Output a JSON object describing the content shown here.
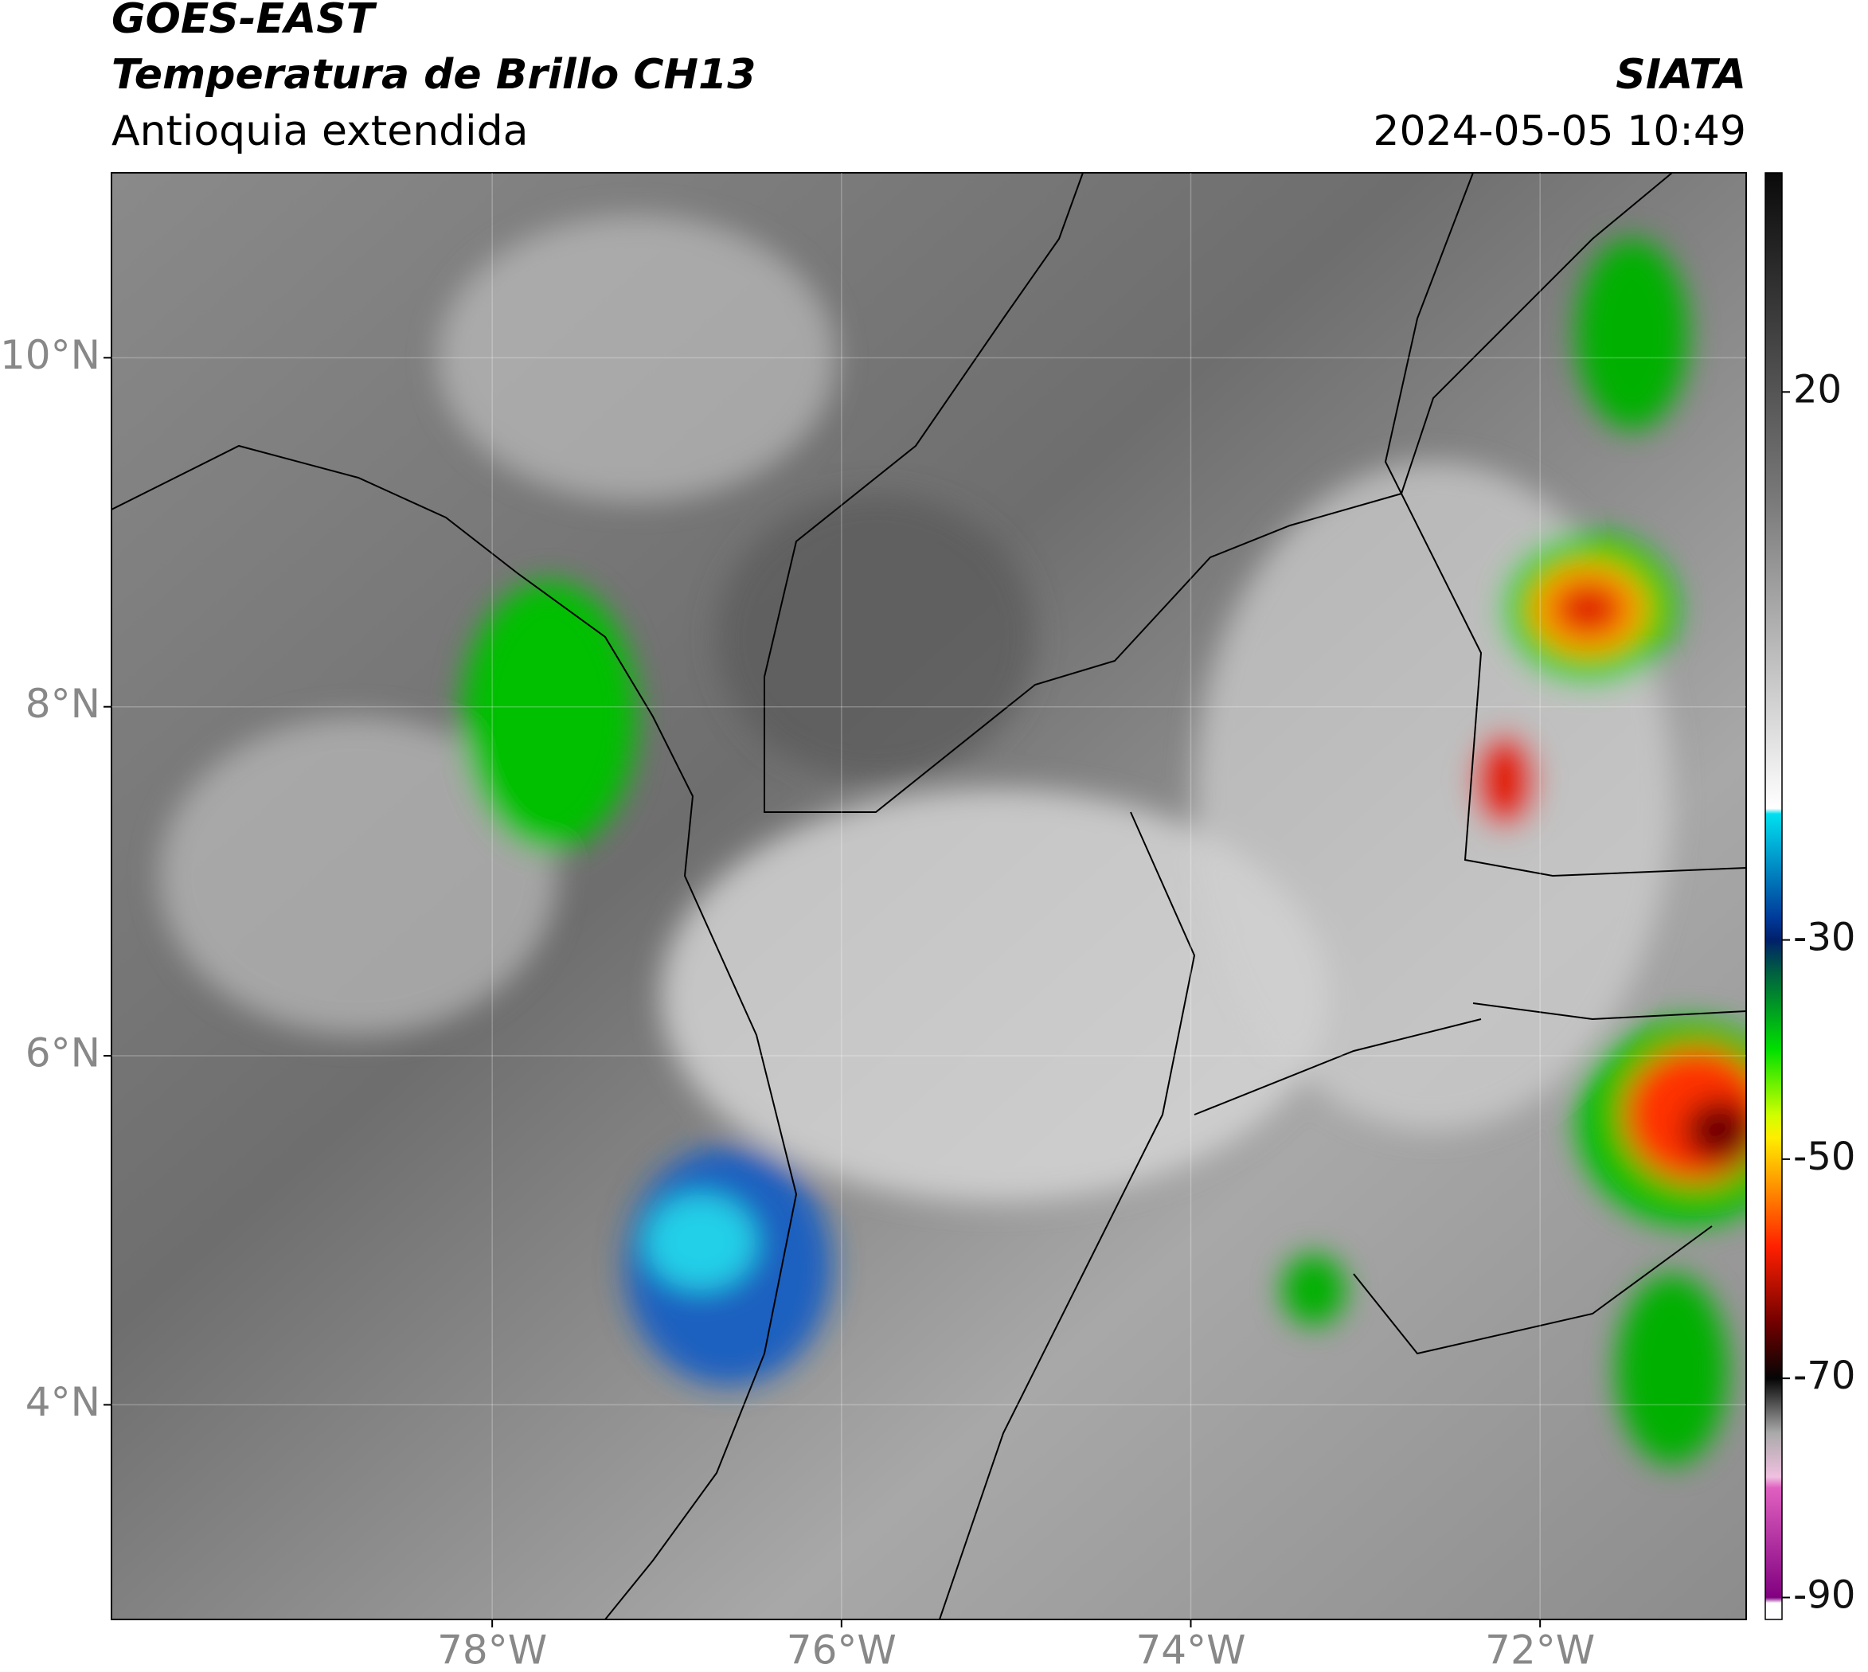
{
  "header": {
    "title": "GOES-EAST",
    "subtitle": "Temperatura de Brillo CH13",
    "region": "Antioquia extendida",
    "source": "SIATA",
    "timestamp": "2024-05-05 10:49"
  },
  "map": {
    "xlim": [
      -80.18,
      -70.82
    ],
    "ylim": [
      2.77,
      11.06
    ],
    "xticks": [
      {
        "value": -78,
        "label": "78°W"
      },
      {
        "value": -76,
        "label": "76°W"
      },
      {
        "value": -74,
        "label": "74°W"
      },
      {
        "value": -72,
        "label": "72°W"
      }
    ],
    "yticks": [
      {
        "value": 10,
        "label": "10°N"
      },
      {
        "value": 8,
        "label": "8°N"
      },
      {
        "value": 6,
        "label": "6°N"
      },
      {
        "value": 4,
        "label": "4°N"
      }
    ],
    "grid": true
  },
  "colorbar": {
    "lim": [
      -92,
      40
    ],
    "ticks": [
      20,
      -30,
      -50,
      -70,
      -90
    ],
    "stops": [
      {
        "value": 40,
        "color": "#0a0a0a"
      },
      {
        "value": 10,
        "color": "#7a7a7a"
      },
      {
        "value": -18,
        "color": "#ffffff"
      },
      {
        "value": -18.5,
        "color": "#00e0f0"
      },
      {
        "value": -28,
        "color": "#003a9a"
      },
      {
        "value": -30,
        "color": "#00206a"
      },
      {
        "value": -33,
        "color": "#006040"
      },
      {
        "value": -40,
        "color": "#00e000"
      },
      {
        "value": -46,
        "color": "#d0ff00"
      },
      {
        "value": -48,
        "color": "#ffee00"
      },
      {
        "value": -53,
        "color": "#ff8800"
      },
      {
        "value": -58,
        "color": "#ff2000"
      },
      {
        "value": -65,
        "color": "#700000"
      },
      {
        "value": -70,
        "color": "#050505"
      },
      {
        "value": -75,
        "color": "#aaaaaa"
      },
      {
        "value": -79,
        "color": "#f0c0e0"
      },
      {
        "value": -80,
        "color": "#e060c0"
      },
      {
        "value": -90,
        "color": "#800080"
      },
      {
        "value": -90.5,
        "color": "#ffffff"
      }
    ]
  }
}
